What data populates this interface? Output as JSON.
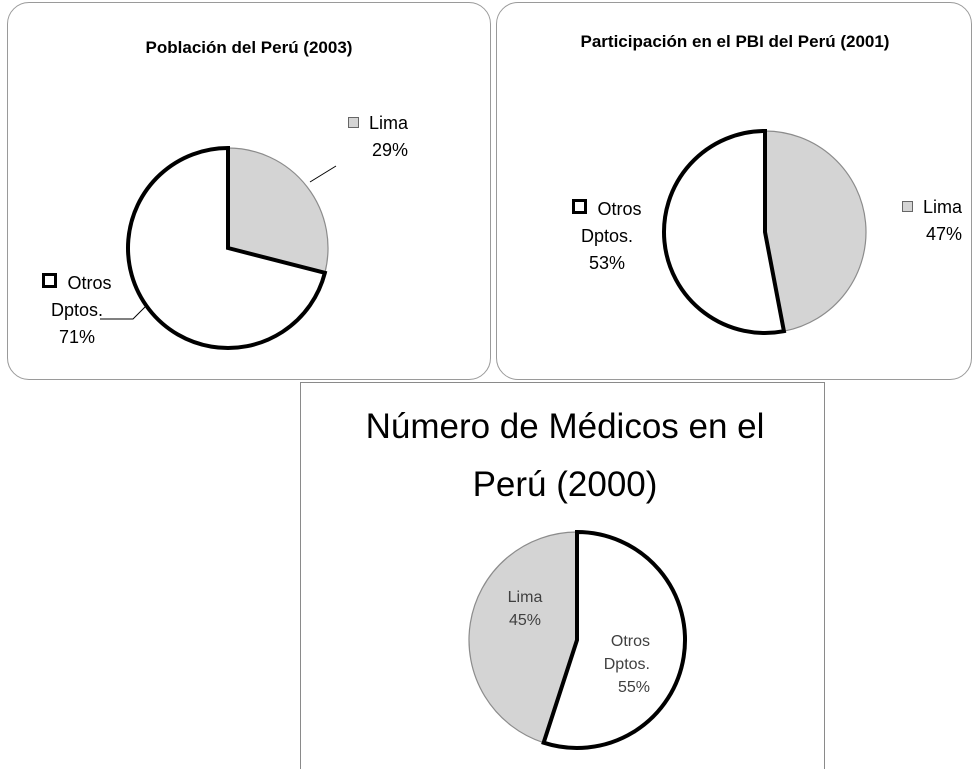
{
  "chart_data": [
    {
      "type": "pie",
      "title": "Población del Perú (2003)",
      "categories": [
        "Lima",
        "Otros Dptos."
      ],
      "values": [
        29,
        71
      ],
      "value_labels": [
        "29%",
        "71%"
      ],
      "colors": [
        "#d4d4d4",
        "#ffffff"
      ]
    },
    {
      "type": "pie",
      "title": "Participación en el PBI del Perú (2001)",
      "categories": [
        "Lima",
        "Otros Dptos."
      ],
      "values": [
        47,
        53
      ],
      "value_labels": [
        "47%",
        "53%"
      ],
      "colors": [
        "#d4d4d4",
        "#ffffff"
      ]
    },
    {
      "type": "pie",
      "title": "Número de Médicos en el Perú (2000)",
      "categories": [
        "Otros Dptos.",
        "Lima"
      ],
      "values": [
        55,
        45
      ],
      "value_labels": [
        "55%",
        "45%"
      ],
      "colors": [
        "#ffffff",
        "#d4d4d4"
      ]
    }
  ]
}
